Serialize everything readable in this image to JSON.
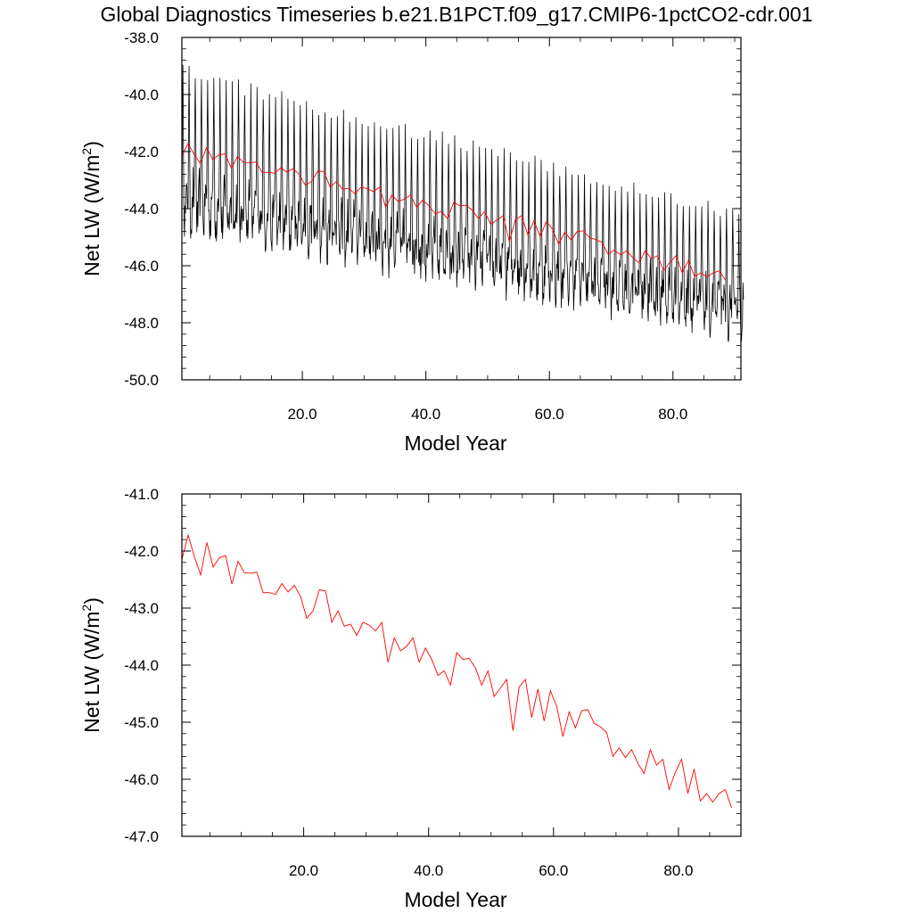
{
  "title": "Global Diagnostics Timeseries b.e21.B1PCT.f09_g17.CMIP6-1pctCO2-cdr.001",
  "colors": {
    "monthly": "#000000",
    "annual": "#ff0000",
    "axis": "#000000"
  },
  "chart_data": [
    {
      "type": "line",
      "panel": "top",
      "xlabel": "Model Year",
      "ylabel_main": "Net LW (W/m",
      "ylabel_sup": "2",
      "ylabel_close": ")",
      "xlim": [
        0.5,
        91.0
      ],
      "ylim": [
        -50.0,
        -38.0
      ],
      "xticks": [
        20,
        40,
        60,
        80
      ],
      "xtick_labels": [
        "20.0",
        "40.0",
        "60.0",
        "80.0"
      ],
      "yticks": [
        -38,
        -40,
        -42,
        -44,
        -46,
        -48,
        -50
      ],
      "ytick_labels": [
        "-38.0",
        "-40.0",
        "-42.0",
        "-44.0",
        "-46.0",
        "-48.0",
        "-50.0"
      ],
      "series": [
        {
          "name": "monthly",
          "color": "#000000",
          "kind": "monthly-seasonal",
          "start_year": 0.5,
          "months": 1092,
          "annual_max_start": -39.2,
          "annual_max_end": -44.3,
          "annual_min_start": -44.3,
          "annual_min_end": -48.0
        },
        {
          "name": "annual",
          "color": "#ff0000",
          "ref": "annual_mean"
        }
      ]
    },
    {
      "type": "line",
      "panel": "bottom",
      "xlabel": "Model Year",
      "ylabel_main": "Net LW (W/m",
      "ylabel_sup": "2",
      "ylabel_close": ")",
      "xlim": [
        0.5,
        90.0
      ],
      "ylim": [
        -47.0,
        -41.0
      ],
      "xticks": [
        20,
        40,
        60,
        80
      ],
      "xtick_labels": [
        "20.0",
        "40.0",
        "60.0",
        "80.0"
      ],
      "yticks": [
        -41,
        -42,
        -43,
        -44,
        -45,
        -46,
        -47
      ],
      "ytick_labels": [
        "-41.0",
        "-42.0",
        "-43.0",
        "-44.0",
        "-45.0",
        "-46.0",
        "-47.0"
      ],
      "series": [
        {
          "name": "annual",
          "color": "#ff0000",
          "ref": "annual_mean"
        }
      ]
    }
  ],
  "annual_mean": {
    "x_start": 0.5,
    "values": [
      -42.15,
      -41.72,
      -42.1,
      -42.42,
      -41.85,
      -42.28,
      -42.12,
      -42.08,
      -42.58,
      -42.18,
      -42.38,
      -42.39,
      -42.37,
      -42.73,
      -42.73,
      -42.76,
      -42.57,
      -42.72,
      -42.6,
      -42.8,
      -43.18,
      -43.05,
      -42.68,
      -42.7,
      -43.25,
      -43.05,
      -43.32,
      -43.28,
      -43.48,
      -43.25,
      -43.3,
      -43.4,
      -43.25,
      -43.95,
      -43.52,
      -43.75,
      -43.67,
      -43.52,
      -43.95,
      -43.7,
      -43.9,
      -44.18,
      -44.1,
      -44.35,
      -43.78,
      -43.9,
      -43.88,
      -44.05,
      -44.35,
      -44.1,
      -44.55,
      -44.4,
      -44.25,
      -45.15,
      -44.38,
      -44.25,
      -44.92,
      -44.42,
      -44.98,
      -44.45,
      -44.72,
      -45.25,
      -44.82,
      -45.1,
      -44.8,
      -44.78,
      -45.02,
      -45.08,
      -45.18,
      -45.6,
      -45.45,
      -45.62,
      -45.48,
      -45.72,
      -45.9,
      -45.48,
      -45.75,
      -45.65,
      -46.18,
      -45.88,
      -45.65,
      -46.25,
      -45.82,
      -46.38,
      -46.25,
      -46.4,
      -46.25,
      -46.18,
      -46.5
    ]
  }
}
